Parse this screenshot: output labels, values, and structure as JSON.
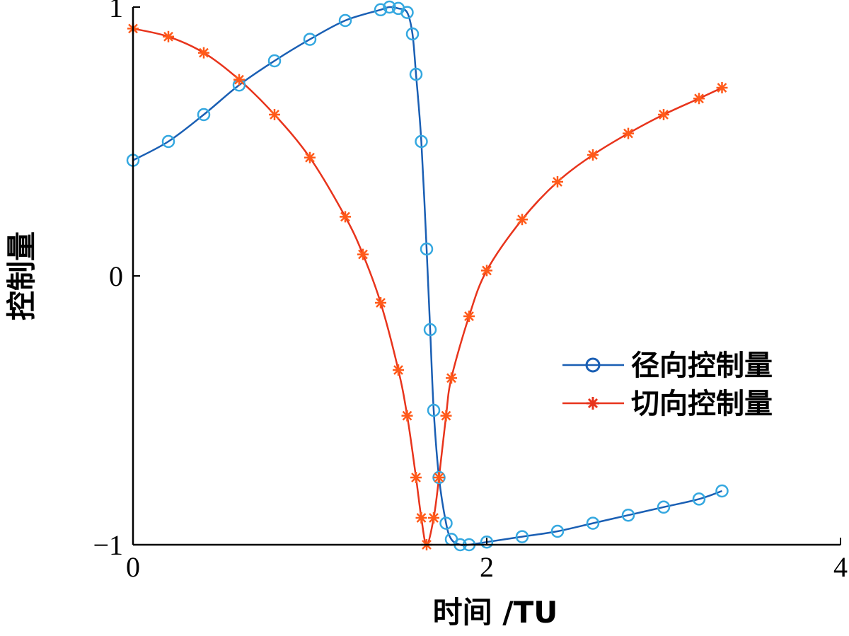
{
  "chart_data": {
    "type": "line",
    "xlabel": "时间 /TU",
    "ylabel": "控制量",
    "xlim": [
      0,
      4
    ],
    "ylim": [
      -1,
      1
    ],
    "xticks": [
      0,
      2,
      4
    ],
    "yticks": [
      -1,
      0,
      1
    ],
    "xtick_labels": [
      "0",
      "2",
      "4"
    ],
    "ytick_labels": [
      "−1",
      "0",
      "1"
    ],
    "grid": false,
    "legend_position": "right",
    "series": [
      {
        "name": "径向控制量",
        "marker": "circle",
        "color": "#1a5fb4",
        "marker_color": "#35a8e0",
        "x": [
          0,
          0.2,
          0.4,
          0.6,
          0.8,
          1.0,
          1.2,
          1.4,
          1.45,
          1.5,
          1.55,
          1.58,
          1.6,
          1.63,
          1.66,
          1.68,
          1.7,
          1.73,
          1.77,
          1.8,
          1.85,
          1.9,
          2.0,
          2.2,
          2.4,
          2.6,
          2.8,
          3.0,
          3.2,
          3.33
        ],
        "y": [
          0.43,
          0.5,
          0.6,
          0.71,
          0.8,
          0.88,
          0.95,
          0.99,
          1.0,
          0.995,
          0.98,
          0.9,
          0.75,
          0.5,
          0.1,
          -0.2,
          -0.5,
          -0.75,
          -0.92,
          -0.98,
          -1.0,
          -1.0,
          -0.99,
          -0.97,
          -0.95,
          -0.92,
          -0.89,
          -0.86,
          -0.83,
          -0.8
        ]
      },
      {
        "name": "切向控制量",
        "marker": "star",
        "color": "#e8341c",
        "marker_color": "#ff5a1a",
        "x": [
          0,
          0.2,
          0.4,
          0.6,
          0.8,
          1.0,
          1.2,
          1.3,
          1.4,
          1.5,
          1.55,
          1.6,
          1.63,
          1.66,
          1.7,
          1.73,
          1.77,
          1.8,
          1.9,
          2.0,
          2.2,
          2.4,
          2.6,
          2.8,
          3.0,
          3.2,
          3.33
        ],
        "y": [
          0.92,
          0.89,
          0.83,
          0.73,
          0.6,
          0.44,
          0.22,
          0.08,
          -0.1,
          -0.35,
          -0.52,
          -0.75,
          -0.9,
          -1.0,
          -0.9,
          -0.75,
          -0.52,
          -0.38,
          -0.15,
          0.02,
          0.21,
          0.35,
          0.45,
          0.53,
          0.6,
          0.66,
          0.7
        ]
      }
    ]
  }
}
